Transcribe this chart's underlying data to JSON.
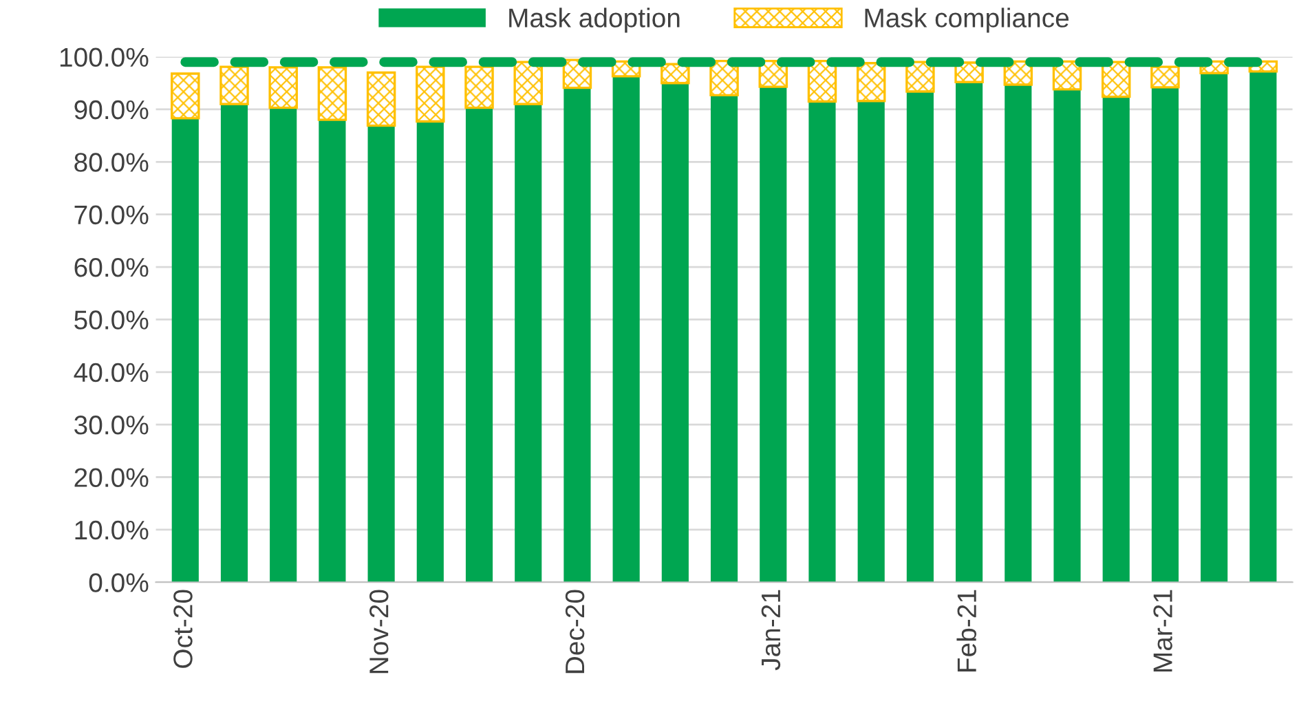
{
  "chart_data": {
    "type": "bar",
    "stacked": true,
    "categories": [
      "Oct-20",
      null,
      null,
      null,
      "Nov-20",
      null,
      null,
      null,
      "Dec-20",
      null,
      null,
      null,
      "Jan-21",
      null,
      null,
      null,
      "Feb-21",
      null,
      null,
      null,
      "Mar-21",
      null,
      null
    ],
    "series": [
      {
        "name": "Mask adoption",
        "color": "#00a651",
        "values": [
          88.3,
          91.0,
          90.3,
          88.0,
          86.9,
          87.7,
          90.3,
          91.0,
          94.1,
          96.3,
          95.0,
          92.7,
          94.3,
          91.5,
          91.6,
          93.4,
          95.2,
          94.7,
          93.8,
          92.4,
          94.2,
          96.9,
          97.2
        ]
      },
      {
        "name": "Mask compliance",
        "color": "#ffc000",
        "values": [
          8.5,
          7.1,
          7.7,
          10.0,
          10.1,
          10.4,
          7.8,
          8.0,
          5.3,
          2.8,
          3.6,
          6.5,
          4.9,
          7.7,
          7.2,
          5.6,
          3.7,
          4.4,
          5.3,
          6.6,
          3.9,
          2.2,
          1.9
        ]
      },
      {
        "type": "line",
        "color": "#00a651",
        "line_style": "dashed",
        "values": [
          99,
          99,
          99,
          99,
          99,
          99,
          99,
          99,
          99,
          99,
          99,
          99,
          99,
          99,
          99,
          99,
          99,
          99,
          99,
          99,
          99,
          99,
          99
        ]
      }
    ],
    "ylim": [
      0,
      100
    ],
    "yticks": [
      {
        "value": 0,
        "label": "0.0%"
      },
      {
        "value": 10,
        "label": "10.0%"
      },
      {
        "value": 20,
        "label": "20.0%"
      },
      {
        "value": 30,
        "label": "30.0%"
      },
      {
        "value": 40,
        "label": "40.0%"
      },
      {
        "value": 50,
        "label": "50.0%"
      },
      {
        "value": 60,
        "label": "60.0%"
      },
      {
        "value": 70,
        "label": "70.0%"
      },
      {
        "value": 80,
        "label": "80.0%"
      },
      {
        "value": 90,
        "label": "90.0%"
      },
      {
        "value": 100,
        "label": "100.0%"
      }
    ],
    "grid": "y",
    "legend": "top"
  }
}
